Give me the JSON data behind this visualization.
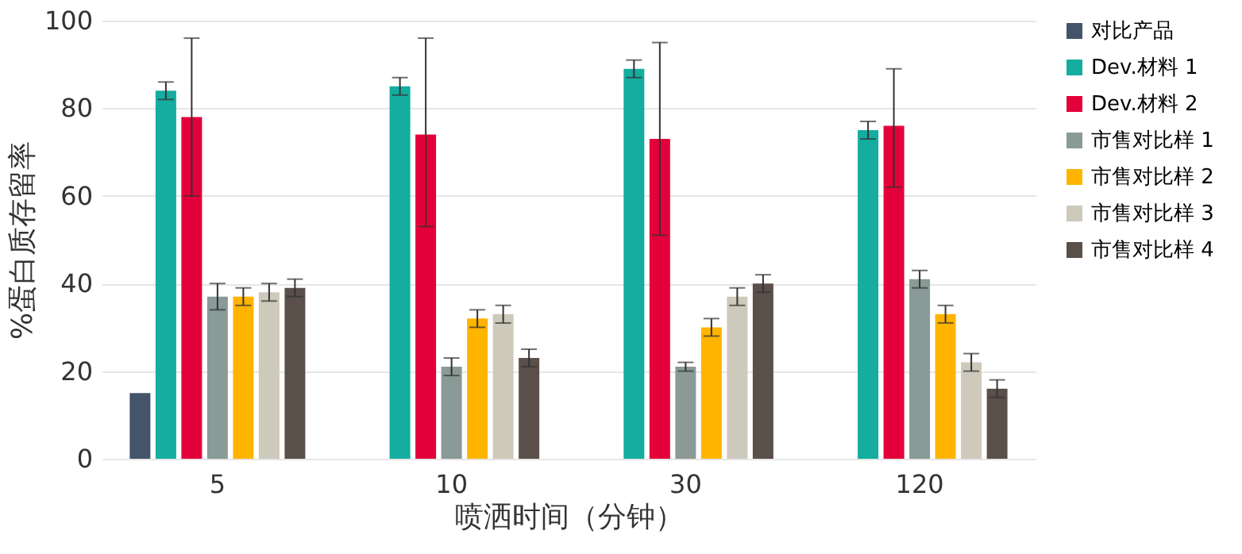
{
  "chart_data": {
    "type": "bar",
    "xlabel": "喷洒时间（分钟）",
    "ylabel": "%蛋白质存留率",
    "categories": [
      "5",
      "10",
      "30",
      "120"
    ],
    "ylim": [
      0,
      100
    ],
    "yticks": [
      0,
      20,
      40,
      60,
      80,
      100
    ],
    "grid": "y",
    "legend": "right",
    "series": [
      {
        "name": "对比产品",
        "color": "#44546a",
        "values": [
          15,
          null,
          null,
          null
        ]
      },
      {
        "name": "Dev.材料 1",
        "color": "#14ada0",
        "values": [
          84,
          85,
          89,
          75
        ],
        "errors": [
          2,
          2,
          2,
          2
        ]
      },
      {
        "name": "Dev.材料 2",
        "color": "#e4003a",
        "values": [
          78,
          74,
          73,
          76
        ],
        "errors": [
          [
            60,
            96
          ],
          [
            53,
            96
          ],
          [
            51,
            95
          ],
          [
            62,
            89
          ]
        ]
      },
      {
        "name": "市售对比样 1",
        "color": "#8a9a96",
        "values": [
          37,
          21,
          21,
          41
        ],
        "errors": [
          3,
          2,
          1,
          2
        ]
      },
      {
        "name": "市售对比样 2",
        "color": "#ffb400",
        "values": [
          37,
          32,
          30,
          33
        ],
        "errors": [
          2,
          2,
          2,
          2
        ]
      },
      {
        "name": "市售对比样 3",
        "color": "#cdc9bb",
        "values": [
          38,
          33,
          37,
          22
        ],
        "errors": [
          2,
          2,
          2,
          2
        ]
      },
      {
        "name": "市售对比样 4",
        "color": "#5b4f4a",
        "values": [
          39,
          23,
          40,
          16
        ],
        "errors": [
          2,
          2,
          2,
          2
        ]
      }
    ]
  }
}
